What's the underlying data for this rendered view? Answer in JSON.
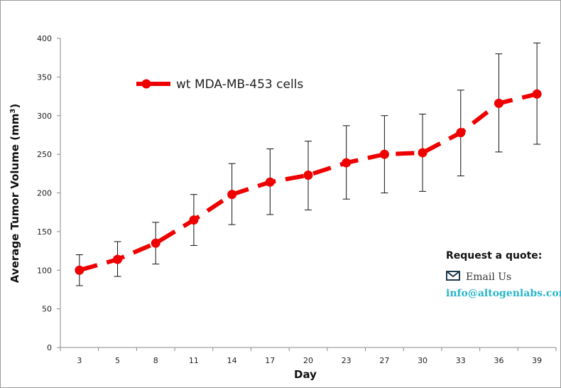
{
  "chart_data": {
    "type": "line",
    "x": [
      3,
      5,
      8,
      11,
      14,
      17,
      20,
      23,
      27,
      30,
      33,
      36,
      39
    ],
    "categories": [
      "3",
      "5",
      "8",
      "11",
      "14",
      "17",
      "20",
      "23",
      "27",
      "30",
      "33",
      "36",
      "39"
    ],
    "series": [
      {
        "name": "wt MDA-MB-453 cells",
        "values": [
          100,
          114,
          135,
          165,
          198,
          214,
          223,
          239,
          250,
          252,
          278,
          316,
          328
        ],
        "error_low": [
          80,
          92,
          108,
          132,
          159,
          172,
          178,
          192,
          200,
          202,
          222,
          253,
          263
        ],
        "error_high": [
          120,
          137,
          162,
          198,
          238,
          257,
          267,
          287,
          300,
          302,
          333,
          380,
          394
        ],
        "color": "#ee0000",
        "line_style": "dashed",
        "marker": "circle"
      }
    ],
    "xlabel": "Day",
    "ylabel": "Average Tumor Volume (mm",
    "ylabel_sup": "3",
    "ylabel_close": ")",
    "ylim": [
      0,
      400
    ],
    "yticks": [
      "0",
      "50",
      "100",
      "150",
      "200",
      "250",
      "300",
      "350",
      "400"
    ],
    "grid": false,
    "legend_position": "top-left"
  },
  "quote": {
    "title": "Request a quote:",
    "email_label": "Email Us",
    "email_address": "info@altogenlabs.com",
    "link_color": "#27b5c9",
    "icon": "envelope-icon"
  }
}
